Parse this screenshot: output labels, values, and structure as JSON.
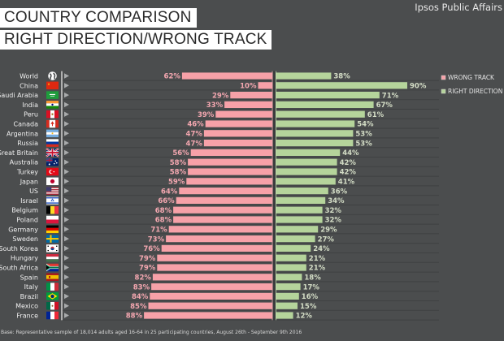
{
  "header": {
    "title_line1": "COUNTRY COMPARISON",
    "title_line2": "RIGHT DIRECTION/WRONG TRACK",
    "brand": "Ipsos Public Affairs"
  },
  "footer": {
    "note": "Base: Representative sample of 18,014 adults aged 16-64 in 25 participating countries, August 26th - September 9th 2016"
  },
  "colors": {
    "background": "#4b4d4e",
    "wrong_track": "#f7a1a8",
    "right_direction": "#b5d49b",
    "divider": "#c9c9c9"
  },
  "chart_data": {
    "type": "bar",
    "orientation": "horizontal-diverging",
    "title": "COUNTRY COMPARISON — RIGHT DIRECTION/WRONG TRACK",
    "xlabel": "",
    "ylabel": "",
    "unit": "%",
    "xlim": [
      0,
      100
    ],
    "legend_position": "right",
    "legend": [
      "WRONG  TRACK",
      "RIGHT DIRECTION"
    ],
    "categories": [
      "World",
      "China",
      "Saudi Arabia",
      "India",
      "Peru",
      "Canada",
      "Argentina",
      "Russia",
      "Great Britain",
      "Australia",
      "Turkey",
      "Japan",
      "US",
      "Israel",
      "Belgium",
      "Poland",
      "Germany",
      "Sweden",
      "South Korea",
      "Hungary",
      "South Africa",
      "Spain",
      "Italy",
      "Brazil",
      "Mexico",
      "France"
    ],
    "flag_icons": [
      "globe-icon",
      "flag-china-icon",
      "flag-saudi-arabia-icon",
      "flag-india-icon",
      "flag-peru-icon",
      "flag-canada-icon",
      "flag-argentina-icon",
      "flag-russia-icon",
      "flag-great-britain-icon",
      "flag-australia-icon",
      "flag-turkey-icon",
      "flag-japan-icon",
      "flag-us-icon",
      "flag-israel-icon",
      "flag-belgium-icon",
      "flag-poland-icon",
      "flag-germany-icon",
      "flag-sweden-icon",
      "flag-south-korea-icon",
      "flag-hungary-icon",
      "flag-south-africa-icon",
      "flag-spain-icon",
      "flag-italy-icon",
      "flag-brazil-icon",
      "flag-mexico-icon",
      "flag-france-icon"
    ],
    "series": [
      {
        "name": "WRONG  TRACK",
        "color": "#f7a1a8",
        "values": [
          62,
          10,
          29,
          33,
          39,
          46,
          47,
          47,
          56,
          58,
          58,
          59,
          64,
          66,
          68,
          68,
          71,
          73,
          76,
          79,
          79,
          82,
          83,
          84,
          85,
          88
        ]
      },
      {
        "name": "RIGHT DIRECTION",
        "color": "#b5d49b",
        "values": [
          38,
          90,
          71,
          67,
          61,
          54,
          53,
          53,
          44,
          42,
          42,
          41,
          36,
          34,
          32,
          32,
          29,
          27,
          24,
          21,
          21,
          18,
          17,
          16,
          15,
          12
        ]
      }
    ]
  }
}
